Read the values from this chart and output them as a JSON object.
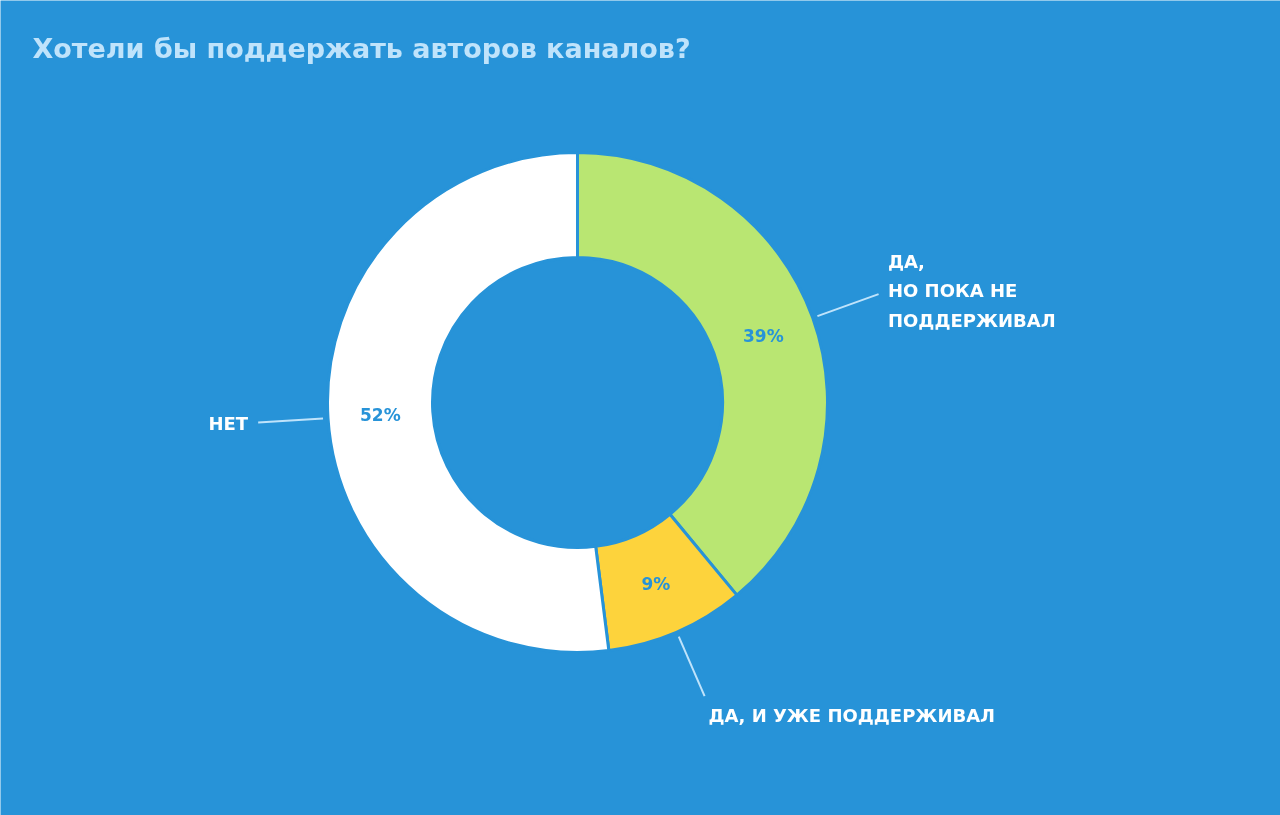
{
  "chart_data": {
    "type": "donut",
    "title": "Хотели бы поддержать авторов каналов?",
    "categories": [
      "ДА,\nНО ПОКА НЕ\nПОДДЕРЖИВАЛ",
      "ДА, И УЖЕ ПОДДЕРЖИВАЛ",
      "НЕТ"
    ],
    "values": [
      39,
      9,
      52
    ],
    "colors": [
      "#b9e672",
      "#fdd33c",
      "#ffffff"
    ],
    "value_labels": [
      "39%",
      "9%",
      "52%"
    ]
  }
}
